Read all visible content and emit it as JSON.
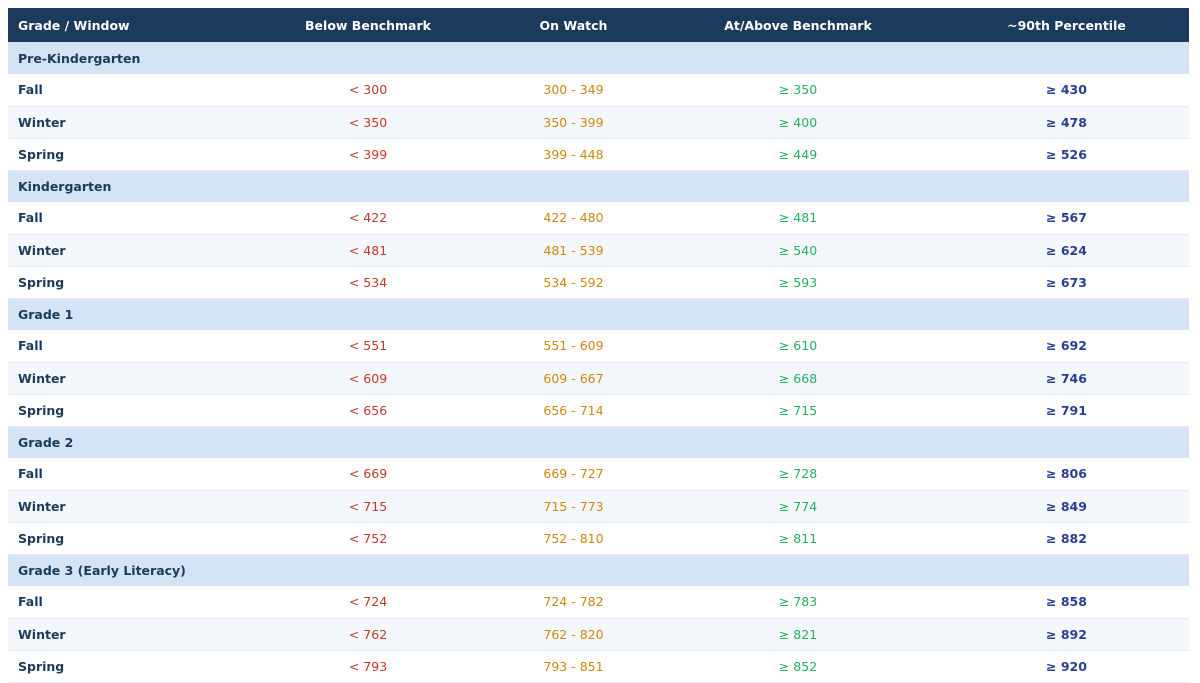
{
  "colors": {
    "header_bg": "#1b3a5c",
    "group_bg": "#d4e4f5",
    "below": "#c0392b",
    "watch": "#c98a0b",
    "above": "#27ae60",
    "percentile": "#2c3e8f"
  },
  "headers": [
    "Grade / Window",
    "Below Benchmark",
    "On Watch",
    "At/Above Benchmark",
    "~90th Percentile"
  ],
  "groups": [
    {
      "title": "Pre-Kindergarten",
      "rows": [
        {
          "window": "Fall",
          "below": "< 300",
          "watch": "300 - 349",
          "above": "≥ 350",
          "pct": "≥ 430"
        },
        {
          "window": "Winter",
          "below": "< 350",
          "watch": "350 - 399",
          "above": "≥ 400",
          "pct": "≥ 478"
        },
        {
          "window": "Spring",
          "below": "< 399",
          "watch": "399 - 448",
          "above": "≥ 449",
          "pct": "≥ 526"
        }
      ]
    },
    {
      "title": "Kindergarten",
      "rows": [
        {
          "window": "Fall",
          "below": "< 422",
          "watch": "422 - 480",
          "above": "≥ 481",
          "pct": "≥ 567"
        },
        {
          "window": "Winter",
          "below": "< 481",
          "watch": "481 - 539",
          "above": "≥ 540",
          "pct": "≥ 624"
        },
        {
          "window": "Spring",
          "below": "< 534",
          "watch": "534 - 592",
          "above": "≥ 593",
          "pct": "≥ 673"
        }
      ]
    },
    {
      "title": "Grade 1",
      "rows": [
        {
          "window": "Fall",
          "below": "< 551",
          "watch": "551 - 609",
          "above": "≥ 610",
          "pct": "≥ 692"
        },
        {
          "window": "Winter",
          "below": "< 609",
          "watch": "609 - 667",
          "above": "≥ 668",
          "pct": "≥ 746"
        },
        {
          "window": "Spring",
          "below": "< 656",
          "watch": "656 - 714",
          "above": "≥ 715",
          "pct": "≥ 791"
        }
      ]
    },
    {
      "title": "Grade 2",
      "rows": [
        {
          "window": "Fall",
          "below": "< 669",
          "watch": "669 - 727",
          "above": "≥ 728",
          "pct": "≥ 806"
        },
        {
          "window": "Winter",
          "below": "< 715",
          "watch": "715 - 773",
          "above": "≥ 774",
          "pct": "≥ 849"
        },
        {
          "window": "Spring",
          "below": "< 752",
          "watch": "752 - 810",
          "above": "≥ 811",
          "pct": "≥ 882"
        }
      ]
    },
    {
      "title": "Grade 3 (Early Literacy)",
      "rows": [
        {
          "window": "Fall",
          "below": "< 724",
          "watch": "724 - 782",
          "above": "≥ 783",
          "pct": "≥ 858"
        },
        {
          "window": "Winter",
          "below": "< 762",
          "watch": "762 - 820",
          "above": "≥ 821",
          "pct": "≥ 892"
        },
        {
          "window": "Spring",
          "below": "< 793",
          "watch": "793 - 851",
          "above": "≥ 852",
          "pct": "≥ 920"
        }
      ]
    }
  ]
}
